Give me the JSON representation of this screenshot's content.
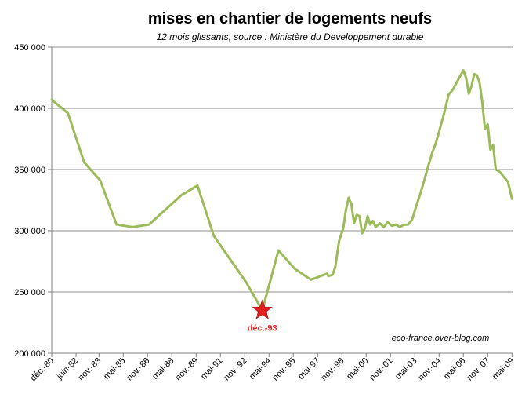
{
  "chart_data": {
    "type": "line",
    "title": "mises en chantier de logements neufs",
    "subtitle": "12 mois glissants, source : Ministère du Developpement durable",
    "annotation": "eco-france.over-blog.com",
    "ylim": [
      200000,
      450000
    ],
    "yticks": [
      {
        "value": 200000,
        "label": "200 000"
      },
      {
        "value": 250000,
        "label": "250 000"
      },
      {
        "value": 300000,
        "label": "300 000"
      },
      {
        "value": 350000,
        "label": "350 000"
      },
      {
        "value": 400000,
        "label": "400 000"
      },
      {
        "value": 450000,
        "label": "450 000"
      }
    ],
    "xlim": [
      "1980-12",
      "2009-06"
    ],
    "xticks": [
      {
        "date": "1980-12",
        "label": "déc.-80"
      },
      {
        "date": "1982-06",
        "label": "juin-82"
      },
      {
        "date": "1983-11",
        "label": "nov.-83"
      },
      {
        "date": "1985-05",
        "label": "mai-85"
      },
      {
        "date": "1986-11",
        "label": "nov.-86"
      },
      {
        "date": "1988-05",
        "label": "mai-88"
      },
      {
        "date": "1989-11",
        "label": "nov.-89"
      },
      {
        "date": "1991-05",
        "label": "mai-91"
      },
      {
        "date": "1992-11",
        "label": "nov.-92"
      },
      {
        "date": "1994-05",
        "label": "mai-94"
      },
      {
        "date": "1995-11",
        "label": "nov.-95"
      },
      {
        "date": "1997-05",
        "label": "mai-97"
      },
      {
        "date": "1998-11",
        "label": "nov.-98"
      },
      {
        "date": "2000-05",
        "label": "mai-00"
      },
      {
        "date": "2001-11",
        "label": "nov.-01"
      },
      {
        "date": "2003-05",
        "label": "mai-03"
      },
      {
        "date": "2004-11",
        "label": "nov.-04"
      },
      {
        "date": "2006-05",
        "label": "mai-06"
      },
      {
        "date": "2007-11",
        "label": "nov.-07"
      },
      {
        "date": "2009-05",
        "label": "mai-09"
      }
    ],
    "grid": true,
    "series": [
      {
        "color": "#9bbb59",
        "points": [
          [
            "1980-12",
            407000
          ],
          [
            "1981-12",
            396000
          ],
          [
            "1982-12",
            356000
          ],
          [
            "1983-12",
            341000
          ],
          [
            "1984-12",
            305000
          ],
          [
            "1985-12",
            303000
          ],
          [
            "1986-12",
            305000
          ],
          [
            "1987-12",
            317000
          ],
          [
            "1988-12",
            329000
          ],
          [
            "1989-12",
            337000
          ],
          [
            "1990-12",
            296000
          ],
          [
            "1991-12",
            277000
          ],
          [
            "1992-12",
            258000
          ],
          [
            "1993-12",
            235000
          ],
          [
            "1994-12",
            284000
          ],
          [
            "1995-12",
            269000
          ],
          [
            "1996-12",
            260000
          ],
          [
            "1997-12",
            265000
          ],
          [
            "1998-01",
            263000
          ],
          [
            "1998-04",
            264000
          ],
          [
            "1998-06",
            270000
          ],
          [
            "1998-09",
            292000
          ],
          [
            "1998-12",
            302000
          ],
          [
            "1999-02",
            317000
          ],
          [
            "1999-04",
            327000
          ],
          [
            "1999-06",
            322000
          ],
          [
            "1999-08",
            306000
          ],
          [
            "1999-10",
            313000
          ],
          [
            "1999-12",
            312000
          ],
          [
            "2000-02",
            298000
          ],
          [
            "2000-04",
            302000
          ],
          [
            "2000-06",
            312000
          ],
          [
            "2000-08",
            305000
          ],
          [
            "2000-10",
            308000
          ],
          [
            "2000-12",
            303000
          ],
          [
            "2001-03",
            306000
          ],
          [
            "2001-06",
            303000
          ],
          [
            "2001-09",
            307000
          ],
          [
            "2001-12",
            304000
          ],
          [
            "2002-03",
            305000
          ],
          [
            "2002-06",
            303000
          ],
          [
            "2002-09",
            305000
          ],
          [
            "2002-12",
            305000
          ],
          [
            "2003-03",
            309000
          ],
          [
            "2003-06",
            320000
          ],
          [
            "2003-09",
            330000
          ],
          [
            "2003-12",
            341000
          ],
          [
            "2004-03",
            353000
          ],
          [
            "2004-06",
            364000
          ],
          [
            "2004-09",
            373000
          ],
          [
            "2004-12",
            385000
          ],
          [
            "2005-03",
            397000
          ],
          [
            "2005-06",
            411000
          ],
          [
            "2005-09",
            415000
          ],
          [
            "2005-12",
            421000
          ],
          [
            "2006-03",
            427000
          ],
          [
            "2006-05",
            431000
          ],
          [
            "2006-07",
            425000
          ],
          [
            "2006-09",
            412000
          ],
          [
            "2006-11",
            418000
          ],
          [
            "2007-01",
            428000
          ],
          [
            "2007-03",
            427000
          ],
          [
            "2007-05",
            421000
          ],
          [
            "2007-07",
            405000
          ],
          [
            "2007-09",
            383000
          ],
          [
            "2007-11",
            387000
          ],
          [
            "2008-01",
            366000
          ],
          [
            "2008-03",
            370000
          ],
          [
            "2008-05",
            350000
          ],
          [
            "2008-08",
            348000
          ],
          [
            "2008-11",
            344000
          ],
          [
            "2009-02",
            340000
          ],
          [
            "2009-05",
            326000
          ]
        ]
      }
    ],
    "marker": {
      "date": "1993-12",
      "value": 235000,
      "label": "déc.-93",
      "color": "#e02020"
    }
  }
}
